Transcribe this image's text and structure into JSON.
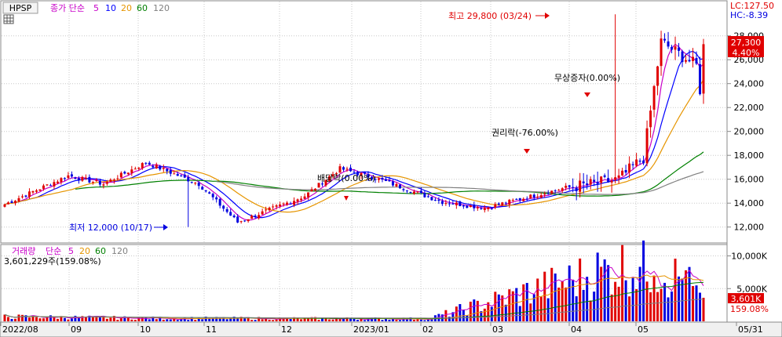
{
  "price_panel": {
    "symbol": "HPSP",
    "ma_title": "종가 단순",
    "ma_periods": [
      "5",
      "10",
      "20",
      "60",
      "120"
    ],
    "ma_colors": [
      "#c800c8",
      "#0000ff",
      "#e69500",
      "#008000",
      "#808080"
    ],
    "lc_label": "LC:127.50",
    "hc_label": "HC:-8.39",
    "last_price": "27,300",
    "last_change": "4.40%",
    "annotations": {
      "high": "최고 29,800 (03/24)",
      "low": "최저 12,000 (10/17)",
      "dividend": "배당락(0.00%)",
      "rights": "권리락(-76.00%)",
      "bonus": "무상증자(0.00%)"
    }
  },
  "volume_panel": {
    "title": "거래량",
    "ma_title": "단순",
    "ma_periods": [
      "5",
      "20",
      "60",
      "120"
    ],
    "ma_colors": [
      "#c800c8",
      "#e69500",
      "#008000",
      "#808080"
    ],
    "current": "3,601,229주(159.08%)",
    "last_volume": "3,601K",
    "last_pct": "159.08%"
  },
  "colors": {
    "up": "#e00000",
    "down": "#0000e0",
    "axis_text": "#000000",
    "grid": "#c8c8c8"
  },
  "chart_data": {
    "type": "candlestick",
    "price_axis": {
      "ticks": [
        12000,
        14000,
        16000,
        18000,
        20000,
        22000,
        24000,
        26000,
        28000
      ],
      "range": [
        10800,
        30800
      ]
    },
    "volume_axis": {
      "ticks": [
        "5,000K",
        "10,000K"
      ],
      "tick_values": [
        5000,
        10000
      ],
      "range": [
        0,
        11500
      ],
      "unit": "K"
    },
    "x_axis_labels": [
      "2022/08",
      "09",
      "10",
      "11",
      "12",
      "2023/01",
      "02",
      "03",
      "04",
      "05",
      "05/31"
    ],
    "price_keys": [
      {
        "t": "2022/08",
        "c": 13900
      },
      {
        "t": "08-mid",
        "c": 16300
      },
      {
        "t": "09",
        "c": 15600
      },
      {
        "t": "09-mid",
        "c": 17400
      },
      {
        "t": "10",
        "c": 15600
      },
      {
        "t": "10/17",
        "c": 12400
      },
      {
        "t": "11",
        "c": 14600
      },
      {
        "t": "11-mid",
        "c": 16900
      },
      {
        "t": "12",
        "c": 15900
      },
      {
        "t": "12-late",
        "c": 14100
      },
      {
        "t": "2023/01",
        "c": 13600
      },
      {
        "t": "02",
        "c": 15300
      },
      {
        "t": "02-late",
        "c": 15600
      },
      {
        "t": "03",
        "c": 16000
      },
      {
        "t": "03-mid",
        "c": 17800
      },
      {
        "t": "03/24",
        "c": 27500
      },
      {
        "t": "04",
        "c": 25500
      },
      {
        "t": "04-mid",
        "c": 21500
      },
      {
        "t": "05",
        "c": 21000
      },
      {
        "t": "05-mid",
        "c": 23800
      },
      {
        "t": "05/31",
        "c": 27300
      }
    ],
    "key_points": {
      "high": {
        "date": "03/24",
        "value": 29800
      },
      "low": {
        "date": "10/17",
        "value": 12000
      },
      "last": {
        "date": "05/31",
        "value": 27300,
        "change_pct": 4.4
      }
    },
    "volume_keys": [
      {
        "t": "2022/08",
        "v": 900
      },
      {
        "t": "10",
        "v": 600
      },
      {
        "t": "02",
        "v": 500
      },
      {
        "t": "03-mid",
        "v": 10500
      },
      {
        "t": "04",
        "v": 9800
      },
      {
        "t": "05-late",
        "v": 7800
      },
      {
        "t": "05/31",
        "v": 3601
      }
    ]
  }
}
